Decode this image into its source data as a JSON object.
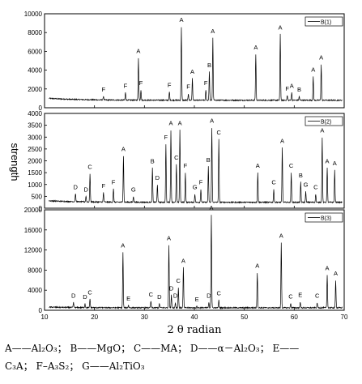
{
  "chart_data": {
    "type": "line",
    "xlabel": "2 θ radian",
    "ylabel": "strength",
    "xlim": [
      10,
      70
    ],
    "x_ticks": [
      10,
      20,
      30,
      40,
      50,
      60,
      70
    ],
    "grid": false,
    "legend_position": "top-right",
    "panels": [
      {
        "name": "B(1)",
        "ylim": [
          0,
          10000
        ],
        "y_ticks": [
          0,
          2000,
          4000,
          6000,
          8000,
          10000
        ],
        "baseline": 800,
        "peaks": [
          {
            "x": 21.8,
            "y": 1200,
            "label": "F"
          },
          {
            "x": 26.2,
            "y": 1600,
            "label": "F"
          },
          {
            "x": 28.8,
            "y": 5300,
            "label": "A"
          },
          {
            "x": 29.3,
            "y": 1900,
            "label": "F"
          },
          {
            "x": 35.0,
            "y": 1700,
            "label": "F"
          },
          {
            "x": 37.4,
            "y": 8600,
            "label": "A"
          },
          {
            "x": 38.8,
            "y": 1500,
            "label": "F"
          },
          {
            "x": 39.6,
            "y": 3100,
            "label": "A"
          },
          {
            "x": 42.3,
            "y": 1900,
            "label": "F"
          },
          {
            "x": 43.0,
            "y": 3800,
            "label": "B"
          },
          {
            "x": 43.7,
            "y": 7400,
            "label": "A"
          },
          {
            "x": 52.3,
            "y": 5700,
            "label": "A"
          },
          {
            "x": 57.2,
            "y": 7800,
            "label": "A"
          },
          {
            "x": 58.6,
            "y": 1300,
            "label": "F"
          },
          {
            "x": 59.5,
            "y": 1600,
            "label": "A"
          },
          {
            "x": 61.0,
            "y": 1200,
            "label": "B"
          },
          {
            "x": 63.8,
            "y": 3300,
            "label": "A"
          },
          {
            "x": 65.4,
            "y": 4600,
            "label": "A"
          }
        ]
      },
      {
        "name": "B(2)",
        "ylim": [
          0,
          4000
        ],
        "y_ticks": [
          0,
          500,
          1000,
          1500,
          2000,
          2500,
          3000,
          3500,
          4000
        ],
        "baseline": 250,
        "peaks": [
          {
            "x": 16.2,
            "y": 600,
            "label": "D"
          },
          {
            "x": 18.3,
            "y": 500,
            "label": "D"
          },
          {
            "x": 19.1,
            "y": 1450,
            "label": "C"
          },
          {
            "x": 21.8,
            "y": 650,
            "label": "F"
          },
          {
            "x": 23.8,
            "y": 800,
            "label": "F"
          },
          {
            "x": 25.8,
            "y": 2200,
            "label": "A"
          },
          {
            "x": 27.8,
            "y": 500,
            "label": "G"
          },
          {
            "x": 31.6,
            "y": 1700,
            "label": "B"
          },
          {
            "x": 32.6,
            "y": 1000,
            "label": "D"
          },
          {
            "x": 34.3,
            "y": 2700,
            "label": "F"
          },
          {
            "x": 35.3,
            "y": 3300,
            "label": "A"
          },
          {
            "x": 36.4,
            "y": 1850,
            "label": "C"
          },
          {
            "x": 37.1,
            "y": 3300,
            "label": "A"
          },
          {
            "x": 38.2,
            "y": 1500,
            "label": "F"
          },
          {
            "x": 40.1,
            "y": 600,
            "label": "G"
          },
          {
            "x": 41.3,
            "y": 800,
            "label": "F"
          },
          {
            "x": 42.8,
            "y": 1750,
            "label": "B"
          },
          {
            "x": 43.5,
            "y": 3400,
            "label": "A"
          },
          {
            "x": 44.9,
            "y": 2900,
            "label": "C"
          },
          {
            "x": 52.7,
            "y": 1500,
            "label": "A"
          },
          {
            "x": 55.9,
            "y": 800,
            "label": "C"
          },
          {
            "x": 57.6,
            "y": 2550,
            "label": "A"
          },
          {
            "x": 59.4,
            "y": 1500,
            "label": "C"
          },
          {
            "x": 61.3,
            "y": 1100,
            "label": "B"
          },
          {
            "x": 62.3,
            "y": 700,
            "label": "G"
          },
          {
            "x": 64.3,
            "y": 600,
            "label": "C"
          },
          {
            "x": 65.6,
            "y": 3000,
            "label": "A"
          },
          {
            "x": 66.6,
            "y": 1700,
            "label": "A"
          },
          {
            "x": 68.1,
            "y": 1600,
            "label": "A"
          }
        ]
      },
      {
        "name": "B(3)",
        "ylim": [
          0,
          20000
        ],
        "y_ticks": [
          0,
          4000,
          8000,
          12000,
          16000,
          20000
        ],
        "baseline": 500,
        "peaks": [
          {
            "x": 15.8,
            "y": 1500,
            "label": "D"
          },
          {
            "x": 18.1,
            "y": 1300,
            "label": "D"
          },
          {
            "x": 19.1,
            "y": 2200,
            "label": "C"
          },
          {
            "x": 25.7,
            "y": 11500,
            "label": "A"
          },
          {
            "x": 26.8,
            "y": 1000,
            "label": "E"
          },
          {
            "x": 31.3,
            "y": 1800,
            "label": "C"
          },
          {
            "x": 33.0,
            "y": 1300,
            "label": "D"
          },
          {
            "x": 34.9,
            "y": 13000,
            "label": "A"
          },
          {
            "x": 35.4,
            "y": 3000,
            "label": "D"
          },
          {
            "x": 36.2,
            "y": 1500,
            "label": "D"
          },
          {
            "x": 36.8,
            "y": 4500,
            "label": "C"
          },
          {
            "x": 37.8,
            "y": 8500,
            "label": "A"
          },
          {
            "x": 40.5,
            "y": 800,
            "label": "E"
          },
          {
            "x": 42.9,
            "y": 1500,
            "label": "D"
          },
          {
            "x": 43.4,
            "y": 19000,
            "label": "A"
          },
          {
            "x": 44.9,
            "y": 2000,
            "label": "C"
          },
          {
            "x": 52.6,
            "y": 7500,
            "label": "A"
          },
          {
            "x": 57.4,
            "y": 13500,
            "label": "A"
          },
          {
            "x": 59.3,
            "y": 1400,
            "label": "C"
          },
          {
            "x": 61.2,
            "y": 1700,
            "label": "E"
          },
          {
            "x": 64.6,
            "y": 1500,
            "label": "C"
          },
          {
            "x": 66.6,
            "y": 7000,
            "label": "A"
          },
          {
            "x": 68.3,
            "y": 6000,
            "label": "A"
          }
        ]
      }
    ]
  },
  "caption": {
    "line1": [
      "A——Al₂O₃；",
      "B——MgO；",
      "C——MA；",
      "D——α－Al₂O₃；",
      "E——"
    ],
    "line2": [
      "C₃A；",
      "F–A₃S₂；",
      "G——Al₂TiO₃"
    ]
  }
}
